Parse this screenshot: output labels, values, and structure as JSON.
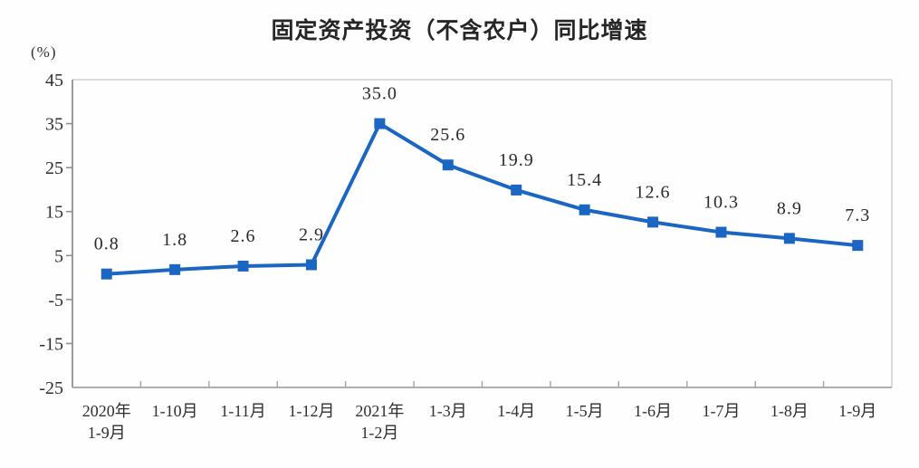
{
  "chart_data": {
    "type": "line",
    "title": "固定资产投资（不含农户）同比增速",
    "unit_label": "(%)",
    "categories": [
      "2020年\n1-9月",
      "1-10月",
      "1-11月",
      "1-12月",
      "2021年\n1-2月",
      "1-3月",
      "1-4月",
      "1-5月",
      "1-6月",
      "1-7月",
      "1-8月",
      "1-9月"
    ],
    "values": [
      0.8,
      1.8,
      2.6,
      2.9,
      35.0,
      25.6,
      19.9,
      15.4,
      12.6,
      10.3,
      8.9,
      7.3
    ],
    "data_labels": [
      "0.8",
      "1.8",
      "2.6",
      "2.9",
      "35.0",
      "25.6",
      "19.9",
      "15.4",
      "12.6",
      "10.3",
      "8.9",
      "7.3"
    ],
    "ylim": [
      -25,
      45
    ],
    "y_ticks": [
      45,
      35,
      25,
      15,
      5,
      -5,
      -15,
      -25
    ],
    "grid": false,
    "legend": "none",
    "line_color": "#1A66C2",
    "marker": "square",
    "axis_color": "#8f8f8f",
    "border_color": "#cfcfcf",
    "bottom_axis_color": "#a3a3a3",
    "text_color": "#2f2f2f",
    "label_color": "#2a2a2a"
  }
}
